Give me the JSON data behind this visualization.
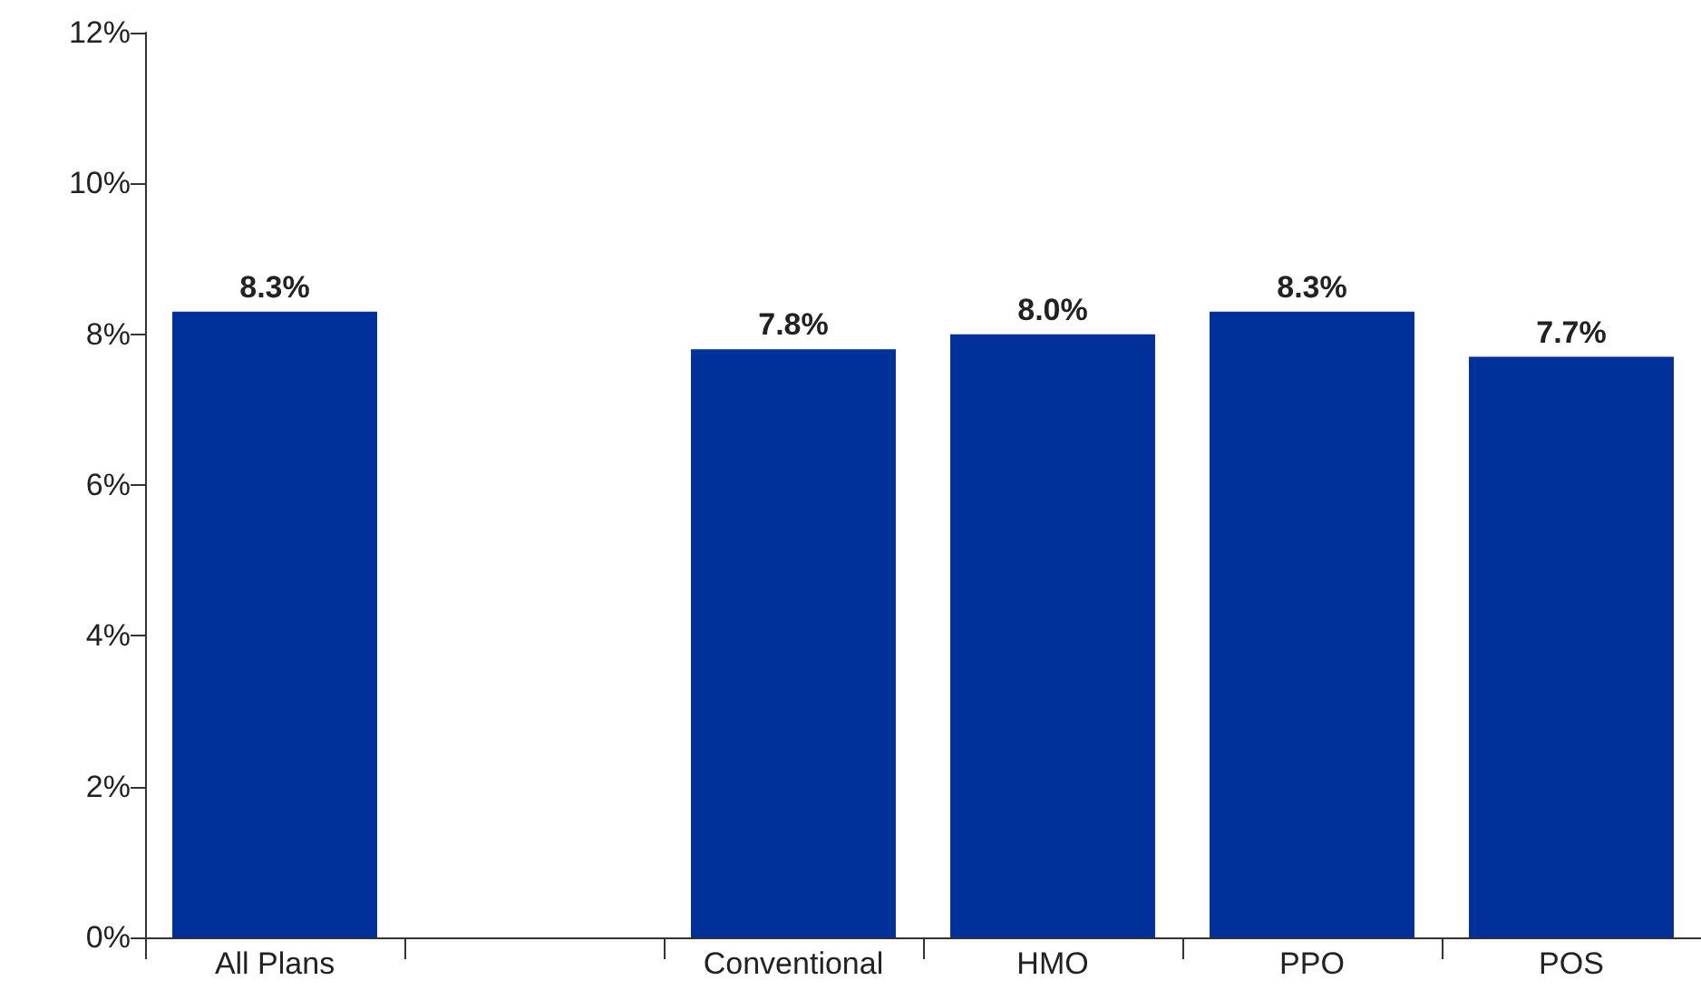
{
  "chart_data": {
    "type": "bar",
    "categories": [
      "All Plans",
      null,
      "Conventional",
      "HMO",
      "PPO",
      "POS"
    ],
    "values": [
      8.3,
      null,
      7.8,
      8.0,
      8.3,
      7.7
    ],
    "value_labels": [
      "8.3%",
      null,
      "7.8%",
      "8.0%",
      "8.3%",
      "7.7%"
    ],
    "color": "#00309a",
    "ylim": [
      0,
      12
    ],
    "yticks": [
      {
        "value": 0,
        "label": "0%"
      },
      {
        "value": 2,
        "label": "2%"
      },
      {
        "value": 4,
        "label": "4%"
      },
      {
        "value": 6,
        "label": "6%"
      },
      {
        "value": 8,
        "label": "8%"
      },
      {
        "value": 10,
        "label": "10%"
      },
      {
        "value": 12,
        "label": "12%"
      }
    ],
    "grid": false
  }
}
